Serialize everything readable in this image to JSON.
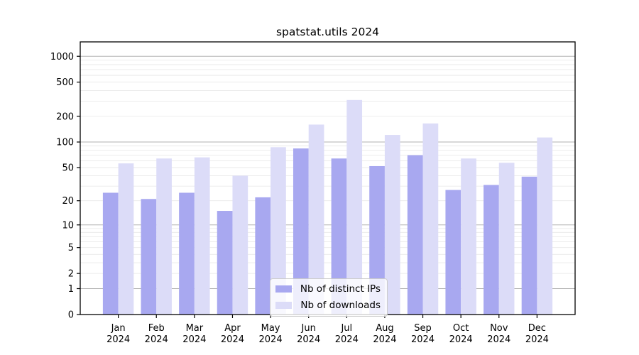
{
  "figure": {
    "title": "spatstat.utils 2024",
    "background": "#ffffff"
  },
  "legend": {
    "items": [
      {
        "label": "Nb of distinct IPs",
        "color": "#a8a8f0"
      },
      {
        "label": "Nb of downloads",
        "color": "#dcdcf8"
      }
    ]
  },
  "chart_data": {
    "type": "bar",
    "title": "spatstat.utils 2024",
    "categories": [
      "Jan",
      "Feb",
      "Mar",
      "Apr",
      "May",
      "Jun",
      "Jul",
      "Aug",
      "Sep",
      "Oct",
      "Nov",
      "Dec"
    ],
    "year_label": "2024",
    "series": [
      {
        "name": "Nb of distinct IPs",
        "color": "#a8a8f0",
        "values": [
          25,
          21,
          25,
          15,
          22,
          84,
          64,
          52,
          70,
          27,
          31,
          39
        ]
      },
      {
        "name": "Nb of downloads",
        "color": "#dcdcf8",
        "values": [
          56,
          64,
          66,
          40,
          87,
          160,
          310,
          121,
          165,
          64,
          57,
          113
        ]
      }
    ],
    "yscale": "log1p",
    "yticks": [
      0,
      1,
      2,
      5,
      10,
      20,
      50,
      100,
      200,
      500,
      1000
    ],
    "ylim": [
      0,
      1470
    ],
    "grid": "horizontal, log minor + major decade lines",
    "grid_major_color": "#b0b0b0",
    "grid_minor_color": "#e9e9e9",
    "axis_color": "#000000",
    "legend_position": "lower center"
  }
}
